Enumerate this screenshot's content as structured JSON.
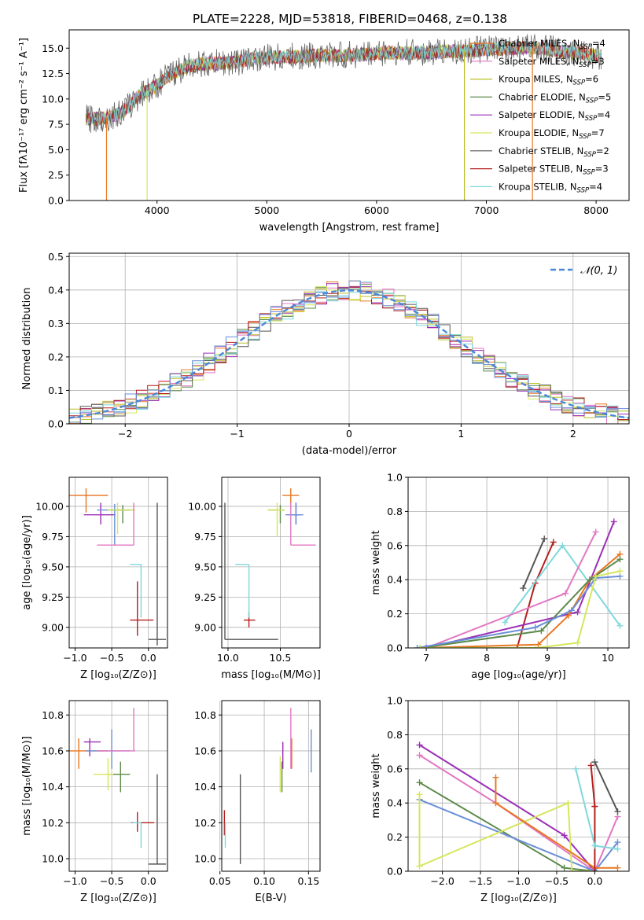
{
  "figure_title": "PLATE=2228, MJD=53818, FIBERID=0468, z=0.138",
  "colors": {
    "Chabrier MILES": "#e87722",
    "Salpeter MILES": "#e377c2",
    "Kroupa MILES": "#bcbd22",
    "Chabrier ELODIE": "#5c8a4a",
    "Salpeter ELODIE": "#9b2fb5",
    "Kroupa ELODIE": "#d6e65a",
    "Chabrier STELIB": "#555555",
    "Salpeter STELIB": "#b51e1e",
    "Kroupa STELIB": "#7fd8dc",
    "Chabrier MILES alt": "#6a8fd8",
    "gaussian": "#4a88d8",
    "grid": "#b0b0b0"
  },
  "chart_data": [
    {
      "id": "spectrum",
      "type": "line",
      "xlabel": "wavelength [Angstrom, rest frame]",
      "ylabel": "Flux [fλ10⁻¹⁷ erg cm⁻² s⁻¹ A⁻¹]",
      "xlim": [
        3200,
        8300
      ],
      "ylim": [
        0,
        16.8
      ],
      "xticks": [
        4000,
        5000,
        6000,
        7000,
        8000
      ],
      "yticks": [
        0.0,
        2.5,
        5.0,
        7.5,
        10.0,
        12.5,
        15.0
      ],
      "grid": false,
      "legend_position": "top-right",
      "legend": [
        {
          "name": "Chabrier MILES, N",
          "sub": "SSP",
          "tail": "=4",
          "color": "#e87722"
        },
        {
          "name": "Salpeter MILES, N",
          "sub": "SSP",
          "tail": "=3",
          "color": "#e377c2"
        },
        {
          "name": "Kroupa MILES, N",
          "sub": "SSP",
          "tail": "=6",
          "color": "#bcbd22"
        },
        {
          "name": "Chabrier ELODIE, N",
          "sub": "SSP",
          "tail": "=5",
          "color": "#5c8a4a"
        },
        {
          "name": "Salpeter ELODIE, N",
          "sub": "SSP",
          "tail": "=4",
          "color": "#9b2fb5"
        },
        {
          "name": "Kroupa ELODIE, N",
          "sub": "SSP",
          "tail": "=7",
          "color": "#d6e65a"
        },
        {
          "name": "Chabrier STELIB, N",
          "sub": "SSP",
          "tail": "=2",
          "color": "#555555"
        },
        {
          "name": "Salpeter STELIB, N",
          "sub": "SSP",
          "tail": "=3",
          "color": "#b51e1e"
        },
        {
          "name": "Kroupa STELIB, N",
          "sub": "SSP",
          "tail": "=4",
          "color": "#7fd8dc"
        }
      ],
      "series_envelope": {
        "x": [
          3350,
          3450,
          3550,
          3650,
          3750,
          3850,
          3950,
          4050,
          4150,
          4300,
          4500,
          4700,
          4900,
          5100,
          5300,
          5500,
          5700,
          5900,
          6100,
          6300,
          6500,
          6700,
          6900,
          7100,
          7300,
          7500,
          7700,
          7900,
          8050
        ],
        "y": [
          8.1,
          8.0,
          8.2,
          8.5,
          9.3,
          10.5,
          11.0,
          11.8,
          12.6,
          13.3,
          13.5,
          13.6,
          14.0,
          14.1,
          14.2,
          14.3,
          14.3,
          14.4,
          14.6,
          14.5,
          14.6,
          14.7,
          14.8,
          14.9,
          15.0,
          15.0,
          14.7,
          14.4,
          14.2
        ]
      },
      "drops": [
        {
          "x": 3540,
          "color": "#e87722"
        },
        {
          "x": 3910,
          "color": "#d6e65a"
        },
        {
          "x": 6800,
          "color": "#bcbd22"
        },
        {
          "x": 7420,
          "color": "#e87722"
        }
      ]
    },
    {
      "id": "residuals",
      "type": "histogram",
      "xlabel": "(data-model)/error",
      "ylabel": "Normed distribution",
      "xlim": [
        -2.5,
        2.5
      ],
      "ylim": [
        0,
        0.51
      ],
      "xticks": [
        -2,
        -1,
        0,
        1,
        2
      ],
      "yticks": [
        0.0,
        0.1,
        0.2,
        0.3,
        0.4,
        0.5
      ],
      "grid": true,
      "legend_position": "top-right",
      "legend_label": "𝒩(0, 1)",
      "bin_width": 0.1,
      "gaussian": {
        "mu": 0,
        "sigma": 1
      }
    },
    {
      "id": "age_vs_z",
      "type": "errorbar",
      "xlabel": "Z [log₁₀(Z/Z⊙)]",
      "ylabel": "age  [log₁₀(age/yr)]",
      "xlim": [
        -1.08,
        0.26
      ],
      "ylim": [
        8.83,
        10.24
      ],
      "xticks": [
        -1.0,
        -0.5,
        0.0
      ],
      "yticks": [
        9.0,
        9.25,
        9.5,
        9.75,
        10.0
      ],
      "grid": true,
      "points": [
        {
          "x": -0.85,
          "xl": -1.08,
          "xh": -0.55,
          "y": 10.09,
          "yl": 9.95,
          "yh": 10.15,
          "color": "#e87722"
        },
        {
          "x": -0.65,
          "xl": -0.88,
          "xh": -0.45,
          "y": 9.93,
          "yl": 9.85,
          "yh": 10.03,
          "color": "#9b2fb5"
        },
        {
          "x": -0.46,
          "xl": -0.7,
          "xh": -0.2,
          "y": 9.97,
          "yl": 9.68,
          "yh": 10.02,
          "color": "#6a8fd8"
        },
        {
          "x": -0.35,
          "xl": -0.53,
          "xh": -0.25,
          "y": 9.97,
          "yl": 9.86,
          "yh": 10.01,
          "color": "#5c8a4a"
        },
        {
          "x": -0.42,
          "xl": -0.55,
          "xh": -0.18,
          "y": 9.97,
          "yl": 9.77,
          "yh": 10.03,
          "color": "#d6e65a"
        },
        {
          "x": -0.2,
          "xl": -0.7,
          "xh": -0.2,
          "y": 9.68,
          "yl": 9.68,
          "yh": 10.03,
          "color": "#e377c2"
        },
        {
          "x": -0.15,
          "xl": -0.25,
          "xh": 0.07,
          "y": 9.06,
          "yl": 8.93,
          "yh": 9.38,
          "color": "#b51e1e"
        },
        {
          "x": -0.1,
          "xl": -0.25,
          "xh": -0.1,
          "y": 9.52,
          "yl": 9.08,
          "yh": 9.52,
          "color": "#7fd8dc"
        },
        {
          "x": 0.12,
          "xl": 0.0,
          "xh": 0.24,
          "y": 8.9,
          "yl": 8.85,
          "yh": 10.03,
          "color": "#555555"
        }
      ]
    },
    {
      "id": "age_vs_mass",
      "type": "errorbar",
      "xlabel": "mass [log₁₀(M/M⊙)]",
      "ylabel": "",
      "xlim": [
        9.94,
        10.88
      ],
      "ylim": [
        8.83,
        10.24
      ],
      "xticks": [
        10.0,
        10.5
      ],
      "yticks": [
        9.0,
        9.25,
        9.5,
        9.75,
        10.0
      ],
      "grid": true,
      "points": [
        {
          "x": 10.6,
          "xl": 10.52,
          "xh": 10.68,
          "y": 10.09,
          "yl": 9.98,
          "yh": 10.15,
          "color": "#e87722"
        },
        {
          "x": 10.65,
          "xl": 10.6,
          "xh": 10.69,
          "y": 9.93,
          "yl": 9.85,
          "yh": 10.03,
          "color": "#9b2fb5"
        },
        {
          "x": 10.65,
          "xl": 10.55,
          "xh": 10.72,
          "y": 9.93,
          "yl": 9.85,
          "yh": 10.03,
          "color": "#6a8fd8"
        },
        {
          "x": 10.5,
          "xl": 10.38,
          "xh": 10.54,
          "y": 9.97,
          "yl": 9.86,
          "yh": 10.01,
          "color": "#5c8a4a"
        },
        {
          "x": 10.47,
          "xl": 10.38,
          "xh": 10.54,
          "y": 9.97,
          "yl": 9.75,
          "yh": 10.03,
          "color": "#d6e65a"
        },
        {
          "x": 10.6,
          "xl": 10.6,
          "xh": 10.84,
          "y": 9.68,
          "yl": 9.68,
          "yh": 10.03,
          "color": "#e377c2"
        },
        {
          "x": 10.2,
          "xl": 10.15,
          "xh": 10.26,
          "y": 9.06,
          "yl": 9.0,
          "yh": 9.13,
          "color": "#b51e1e"
        },
        {
          "x": 10.2,
          "xl": 10.07,
          "xh": 10.2,
          "y": 9.52,
          "yl": 9.08,
          "yh": 9.52,
          "color": "#7fd8dc"
        },
        {
          "x": 9.97,
          "xl": 9.97,
          "xh": 10.48,
          "y": 8.9,
          "yl": 8.9,
          "yh": 10.03,
          "color": "#555555"
        }
      ]
    },
    {
      "id": "mass_weight_vs_age",
      "type": "line",
      "xlabel": "age  [log₁₀(age/yr)]",
      "ylabel": "mass weight",
      "xlim": [
        6.7,
        10.35
      ],
      "ylim": [
        0,
        1.0
      ],
      "xticks": [
        7,
        8,
        9,
        10
      ],
      "yticks": [
        0.0,
        0.2,
        0.4,
        0.6,
        0.8,
        1.0
      ],
      "grid": true,
      "series": [
        {
          "color": "#555555",
          "x": [
            8.6,
            8.95
          ],
          "y": [
            0.35,
            0.64
          ]
        },
        {
          "color": "#b51e1e",
          "x": [
            8.5,
            8.8,
            9.1
          ],
          "y": [
            0.0,
            0.38,
            0.62
          ]
        },
        {
          "color": "#7fd8dc",
          "x": [
            8.3,
            9.25,
            10.2
          ],
          "y": [
            0.15,
            0.6,
            0.13
          ]
        },
        {
          "color": "#e377c2",
          "x": [
            7.0,
            9.3,
            9.8
          ],
          "y": [
            0.0,
            0.32,
            0.68
          ]
        },
        {
          "color": "#9b2fb5",
          "x": [
            7.0,
            9.5,
            10.1
          ],
          "y": [
            0.0,
            0.21,
            0.74
          ]
        },
        {
          "color": "#e87722",
          "x": [
            6.9,
            8.85,
            9.35,
            9.7,
            10.2
          ],
          "y": [
            0.0,
            0.02,
            0.19,
            0.4,
            0.55
          ]
        },
        {
          "color": "#5c8a4a",
          "x": [
            6.9,
            8.9,
            9.7,
            10.2
          ],
          "y": [
            0.0,
            0.1,
            0.4,
            0.52
          ]
        },
        {
          "color": "#6a8fd8",
          "x": [
            6.85,
            8.8,
            9.4,
            9.8,
            10.2
          ],
          "y": [
            0.0,
            0.12,
            0.22,
            0.41,
            0.42
          ]
        },
        {
          "color": "#d6e65a",
          "x": [
            6.9,
            8.8,
            9.5,
            9.8,
            10.2
          ],
          "y": [
            0.0,
            0.0,
            0.03,
            0.42,
            0.45
          ]
        }
      ]
    },
    {
      "id": "mass_vs_z",
      "type": "errorbar",
      "xlabel": "Z [log₁₀(Z/Z⊙)]",
      "ylabel": "mass [log₁₀(M/M⊙)]",
      "xlim": [
        -1.08,
        0.26
      ],
      "ylim": [
        9.93,
        10.88
      ],
      "xticks": [
        -1.0,
        -0.5,
        0.0
      ],
      "yticks": [
        10.0,
        10.2,
        10.4,
        10.6,
        10.8
      ],
      "grid": true,
      "points": [
        {
          "x": -0.95,
          "xl": -1.08,
          "xh": -0.55,
          "y": 10.6,
          "yl": 10.5,
          "yh": 10.67,
          "color": "#e87722"
        },
        {
          "x": -0.8,
          "xl": -0.88,
          "xh": -0.65,
          "y": 10.65,
          "yl": 10.57,
          "yh": 10.67,
          "color": "#9b2fb5"
        },
        {
          "x": -0.5,
          "xl": -0.85,
          "xh": -0.25,
          "y": 10.6,
          "yl": 10.5,
          "yh": 10.72,
          "color": "#6a8fd8"
        },
        {
          "x": -0.38,
          "xl": -0.55,
          "xh": -0.25,
          "y": 10.47,
          "yl": 10.37,
          "yh": 10.54,
          "color": "#5c8a4a"
        },
        {
          "x": -0.55,
          "xl": -0.75,
          "xh": -0.48,
          "y": 10.47,
          "yl": 10.38,
          "yh": 10.56,
          "color": "#d6e65a"
        },
        {
          "x": -0.2,
          "xl": -0.7,
          "xh": -0.18,
          "y": 10.6,
          "yl": 10.6,
          "yh": 10.84,
          "color": "#e377c2"
        },
        {
          "x": -0.15,
          "xl": -0.23,
          "xh": 0.08,
          "y": 10.2,
          "yl": 10.15,
          "yh": 10.26,
          "color": "#b51e1e"
        },
        {
          "x": -0.1,
          "xl": -0.22,
          "xh": -0.1,
          "y": 10.2,
          "yl": 10.06,
          "yh": 10.2,
          "color": "#7fd8dc"
        },
        {
          "x": 0.12,
          "xl": 0.0,
          "xh": 0.24,
          "y": 9.97,
          "yl": 9.97,
          "yh": 10.47,
          "color": "#555555"
        }
      ]
    },
    {
      "id": "mass_vs_ebv",
      "type": "errorbar",
      "xlabel": "E(B-V)",
      "ylabel": "",
      "xlim": [
        0.052,
        0.163
      ],
      "ylim": [
        9.93,
        10.88
      ],
      "xticks": [
        0.05,
        0.1,
        0.15
      ],
      "yticks": [
        10.0,
        10.2,
        10.4,
        10.6,
        10.8
      ],
      "grid": true,
      "points": [
        {
          "x": 0.055,
          "y": 10.2,
          "yl": 10.13,
          "yh": 10.27,
          "color": "#b51e1e"
        },
        {
          "x": 0.056,
          "y": 10.13,
          "yl": 10.06,
          "yh": 10.2,
          "color": "#7fd8dc"
        },
        {
          "x": 0.073,
          "y": 10.21,
          "yl": 9.97,
          "yh": 10.47,
          "color": "#555555"
        },
        {
          "x": 0.118,
          "y": 10.47,
          "yl": 10.37,
          "yh": 10.57,
          "color": "#d6e65a"
        },
        {
          "x": 0.12,
          "y": 10.47,
          "yl": 10.37,
          "yh": 10.54,
          "color": "#5c8a4a"
        },
        {
          "x": 0.121,
          "y": 10.6,
          "yl": 10.5,
          "yh": 10.65,
          "color": "#9b2fb5"
        },
        {
          "x": 0.13,
          "y": 10.6,
          "yl": 10.5,
          "yh": 10.84,
          "color": "#e377c2"
        },
        {
          "x": 0.131,
          "y": 10.6,
          "yl": 10.5,
          "yh": 10.67,
          "color": "#e87722"
        },
        {
          "x": 0.153,
          "y": 10.6,
          "yl": 10.48,
          "yh": 10.72,
          "color": "#6a8fd8"
        }
      ]
    },
    {
      "id": "mass_weight_vs_z",
      "type": "line",
      "xlabel": "Z [log₁₀(Z/Z⊙)]",
      "ylabel": "mass weight",
      "xlim": [
        -2.45,
        0.45
      ],
      "ylim": [
        0,
        1.0
      ],
      "xticks": [
        -2.0,
        -1.5,
        -1.0,
        -0.5,
        0.0
      ],
      "yticks": [
        0.0,
        0.2,
        0.4,
        0.6,
        0.8,
        1.0
      ],
      "grid": true,
      "series": [
        {
          "color": "#9b2fb5",
          "x": [
            -2.3,
            -0.4,
            0.0
          ],
          "y": [
            0.74,
            0.21,
            0.0
          ]
        },
        {
          "color": "#e377c2",
          "x": [
            -2.3,
            -1.3,
            0.0,
            0.3
          ],
          "y": [
            0.68,
            0.4,
            0.0,
            0.32
          ]
        },
        {
          "color": "#5c8a4a",
          "x": [
            -2.3,
            -0.4,
            0.0
          ],
          "y": [
            0.52,
            0.02,
            0.0
          ]
        },
        {
          "color": "#6a8fd8",
          "x": [
            -2.3,
            0.0,
            0.3
          ],
          "y": [
            0.42,
            0.0,
            0.17
          ]
        },
        {
          "color": "#d6e65a",
          "x": [
            -2.3,
            -2.3,
            -0.35,
            -0.3,
            0.0
          ],
          "y": [
            0.45,
            0.03,
            0.4,
            0.0,
            0.0
          ]
        },
        {
          "color": "#e87722",
          "x": [
            -1.3,
            -1.3,
            0.0,
            0.3
          ],
          "y": [
            0.55,
            0.4,
            0.02,
            0.02
          ]
        },
        {
          "color": "#b51e1e",
          "x": [
            -0.05,
            0.0,
            0.0,
            0.0
          ],
          "y": [
            0.62,
            0.38,
            0.0,
            0.38
          ]
        },
        {
          "color": "#7fd8dc",
          "x": [
            -0.25,
            0.0,
            0.3
          ],
          "y": [
            0.6,
            0.15,
            0.13
          ]
        },
        {
          "color": "#555555",
          "x": [
            0.0,
            0.3
          ],
          "y": [
            0.64,
            0.35
          ]
        }
      ]
    }
  ]
}
